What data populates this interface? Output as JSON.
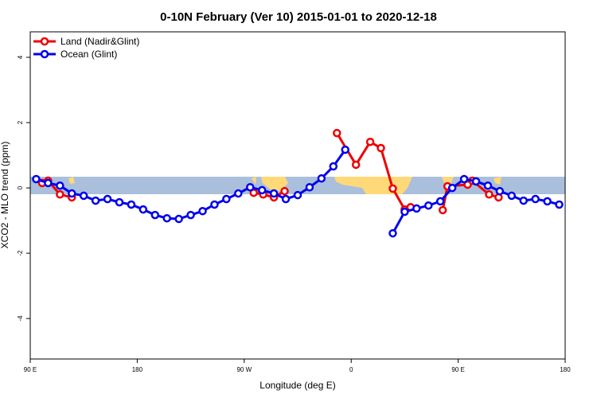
{
  "chart_data": {
    "type": "line",
    "title": "0-10N February (Ver 10)   2015-01-01 to 2020-12-18",
    "xlabel": "Longitude (deg E)",
    "ylabel": "XCO2 - MLO trend (ppm)",
    "xlim": [
      90,
      540
    ],
    "ylim": [
      -5.24,
      4.78
    ],
    "xticks": [
      {
        "value": 90,
        "label": "90 E"
      },
      {
        "value": 180,
        "label": "180"
      },
      {
        "value": 270,
        "label": "90 W"
      },
      {
        "value": 360,
        "label": "0"
      },
      {
        "value": 450,
        "label": "90 E"
      },
      {
        "value": 540,
        "label": "180"
      }
    ],
    "yticks": [
      -4,
      -2,
      0,
      2,
      4
    ],
    "legend": "top-left",
    "grid": false,
    "series": [
      {
        "name": "Land (Nadir&Glint)",
        "color": "#ee0000",
        "x": [
          100,
          105,
          115,
          125,
          null,
          278,
          286,
          295,
          304,
          null,
          348,
          364,
          376,
          385,
          395,
          405,
          410,
          null,
          437,
          441,
          458,
          462,
          476,
          484
        ],
        "values": [
          0.15,
          0.22,
          -0.2,
          -0.29,
          null,
          -0.15,
          -0.2,
          -0.29,
          -0.1,
          null,
          1.68,
          0.71,
          1.41,
          1.22,
          -0.02,
          -0.66,
          -0.59,
          null,
          -0.68,
          0.05,
          0.1,
          0.22,
          -0.2,
          -0.29
        ]
      },
      {
        "name": "Ocean (Glint)",
        "color": "#0000ee",
        "x": [
          95,
          105,
          115,
          125,
          135,
          145,
          155,
          165,
          175,
          185,
          195,
          205,
          215,
          225,
          235,
          245,
          255,
          265,
          275,
          285,
          295,
          305,
          315,
          325,
          335,
          345,
          355,
          365,
          375,
          385,
          395,
          405,
          415,
          425,
          435,
          445,
          455,
          465,
          475,
          485,
          495,
          505,
          515,
          525,
          535
        ],
        "values": [
          0.27,
          0.15,
          0.07,
          -0.17,
          -0.24,
          -0.39,
          -0.34,
          -0.44,
          -0.51,
          -0.66,
          -0.83,
          -0.93,
          -0.95,
          -0.83,
          -0.71,
          -0.51,
          -0.34,
          -0.17,
          0.02,
          -0.07,
          -0.17,
          -0.34,
          -0.22,
          0.02,
          0.29,
          0.66,
          1.17,
          null,
          null,
          null,
          -1.39,
          -0.73,
          -0.63,
          -0.54,
          -0.41,
          0,
          0.27,
          0.2,
          0.07,
          -0.1,
          -0.24,
          -0.39,
          -0.34,
          -0.41,
          -0.51
        ]
      }
    ]
  }
}
